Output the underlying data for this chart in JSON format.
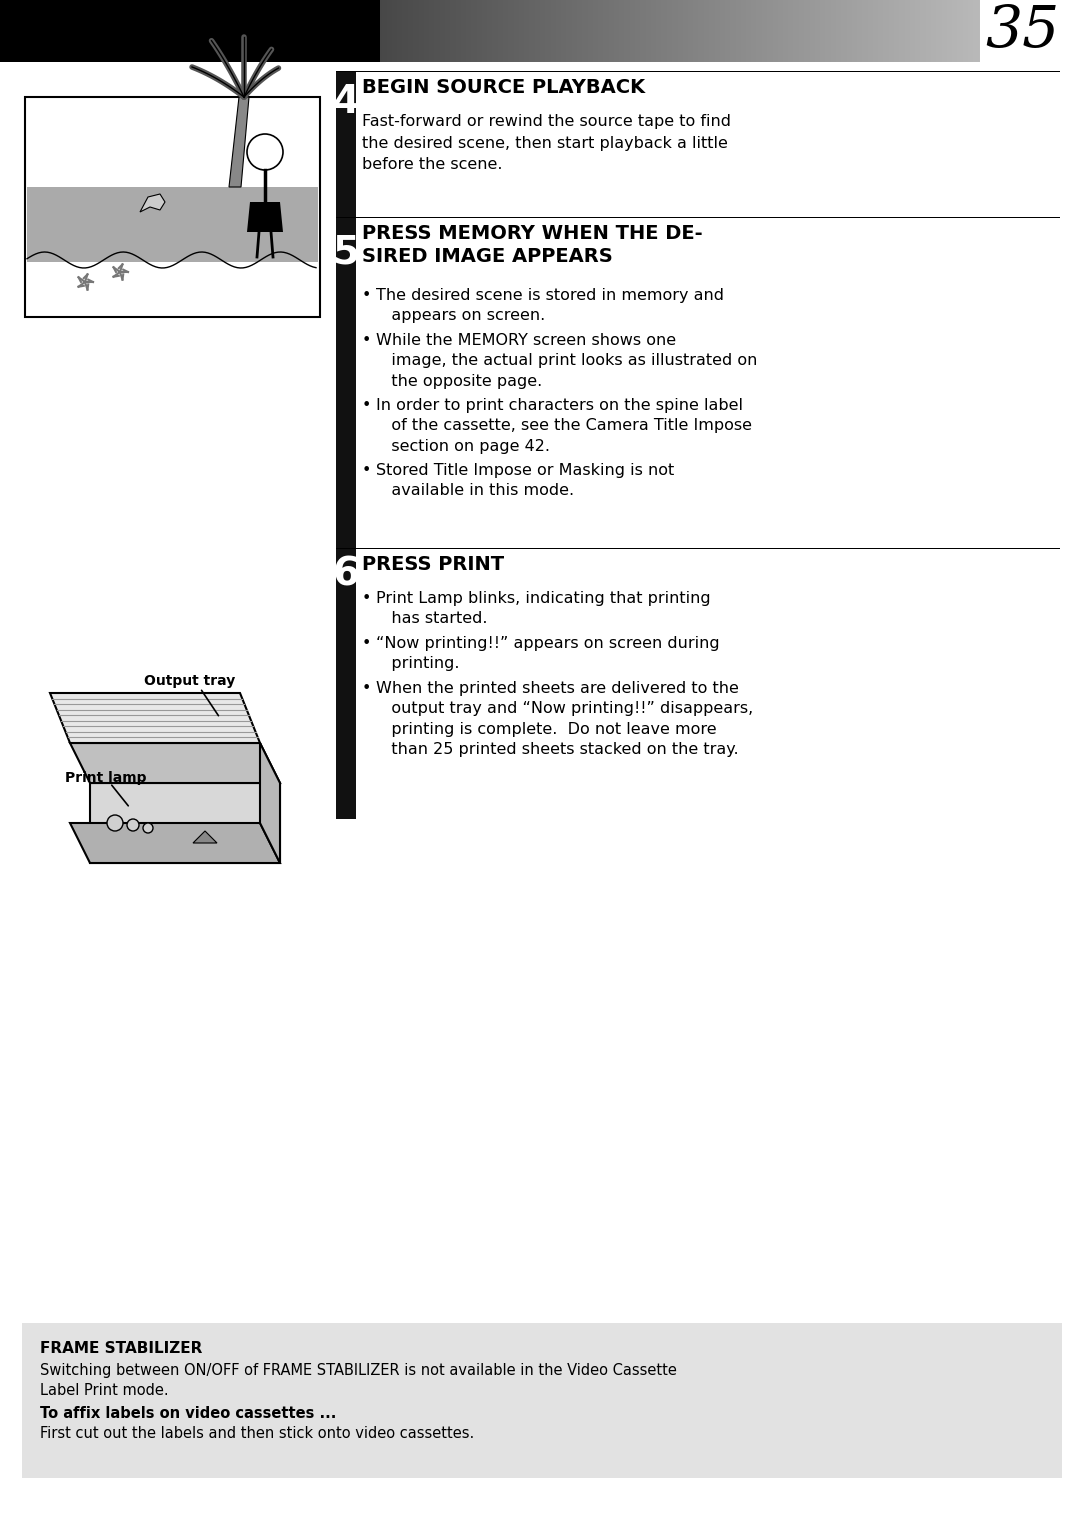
{
  "page_number": "35",
  "bg_color": "#ffffff",
  "step4": {
    "number": "4",
    "title": "BEGIN SOURCE PLAYBACK",
    "body": "Fast-forward or rewind the source tape to find\nthe desired scene, then start playback a little\nbefore the scene."
  },
  "step5": {
    "number": "5",
    "title": "PRESS MEMORY WHEN THE DE-\nSIRED IMAGE APPEARS",
    "bullets": [
      "The desired scene is stored in memory and\n   appears on screen.",
      "While the MEMORY screen shows one\n   image, the actual print looks as illustrated on\n   the opposite page.",
      "In order to print characters on the spine label\n   of the cassette, see the Camera Title Impose\n   section on page 42.",
      "Stored Title Impose or Masking is not\n   available in this mode."
    ]
  },
  "step6": {
    "number": "6",
    "title": "PRESS PRINT",
    "bullets": [
      "Print Lamp blinks, indicating that printing\n   has started.",
      "“Now printing!!” appears on screen during\n   printing.",
      "When the printed sheets are delivered to the\n   output tray and “Now printing!!” disappears,\n   printing is complete.  Do not leave more\n   than 25 printed sheets stacked on the tray."
    ]
  },
  "footer": {
    "bg_color": "#e0e0e0",
    "title": "FRAME STABILIZER",
    "line1": "Switching between ON/OFF of FRAME STABILIZER is not available in the Video Cassette",
    "line2": "Label Print mode.",
    "line3_bold": "To affix labels on video cassettes ...",
    "line4": "First cut out the labels and then stick onto video cassettes."
  },
  "label_output_tray": "Output tray",
  "label_print_lamp": "Print lamp",
  "header_gradient_start": "#000000",
  "header_gradient_end": "#cccccc",
  "sidebar_color": "#111111"
}
